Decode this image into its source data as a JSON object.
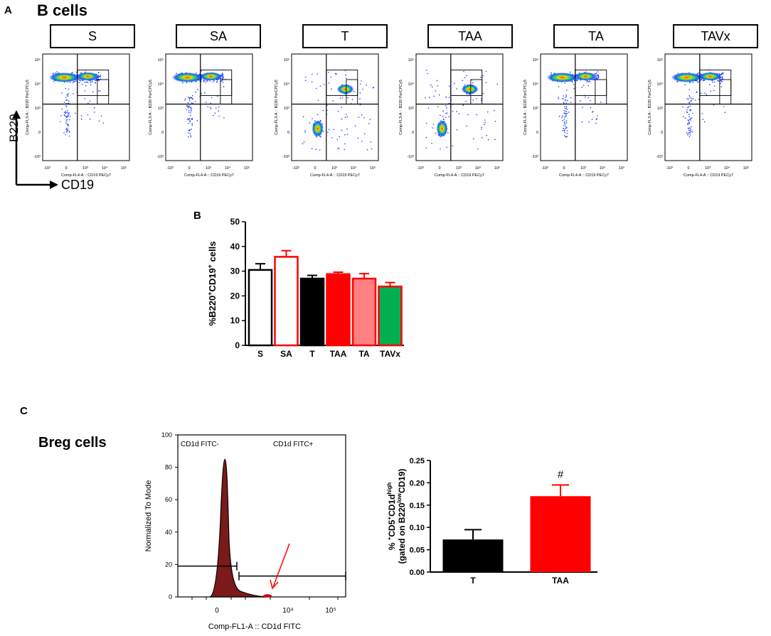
{
  "panel_a": {
    "letter": "A",
    "title": "B cells",
    "groups": [
      "S",
      "SA",
      "T",
      "TAA",
      "TA",
      "TAVx"
    ],
    "y_axis_label": "Comp-FL3-A :: B220 PerCPCy5",
    "x_axis_label": "Comp-FL4-A :: CD19 PECy7",
    "y_marker": "B220",
    "x_marker": "CD19",
    "tick_labels": [
      "-10³",
      "0",
      "10³",
      "10⁴",
      "10⁵"
    ]
  },
  "chart_data": [
    {
      "type": "bar",
      "panel": "B",
      "categories": [
        "S",
        "SA",
        "T",
        "TAA",
        "TA",
        "TAVx"
      ],
      "values": [
        30.5,
        35.8,
        27.0,
        28.8,
        27.0,
        23.8
      ],
      "errors": [
        2.5,
        2.5,
        1.3,
        0.8,
        2.0,
        1.6
      ],
      "colors": [
        "#ffffff",
        "#ffffff",
        "#000000",
        "#ff0000",
        "#ff8080",
        "#00b050"
      ],
      "edge_colors": [
        "#000000",
        "#ff0000",
        "#000000",
        "#ff0000",
        "#ff0000",
        "#ff0000"
      ],
      "ylabel_parts": [
        "%B220",
        "+",
        "CD19",
        "+",
        "cells"
      ],
      "ylim": [
        0,
        50
      ],
      "yticks": [
        "0",
        "10",
        "20",
        "30",
        "40",
        "50"
      ]
    },
    {
      "type": "histogram",
      "panel": "C-left",
      "ylabel": "Normalized To Mode",
      "xlabel": "Comp-FL1-A :: CD1d FITC",
      "ylim": [
        0,
        100
      ],
      "yticks": [
        "0",
        "20",
        "40",
        "60",
        "80",
        "100"
      ],
      "xticks": [
        "0",
        "10⁴",
        "10⁵"
      ],
      "gate_negative_label": "CD1d FITC-",
      "gate_positive_label": "CD1d FITC+",
      "peak_mode_value": 85,
      "gate_level": 19,
      "fill_color": "#7a1a1a",
      "arrow_color": "#ff0000"
    },
    {
      "type": "bar",
      "panel": "C-right",
      "categories": [
        "T",
        "TAA"
      ],
      "values": [
        0.073,
        0.17
      ],
      "errors": [
        0.022,
        0.025
      ],
      "colors": [
        "#000000",
        "#ff0000"
      ],
      "ylabel_line1": "% CD5 CD1d",
      "ylabel_line1_sup1": "+",
      "ylabel_line1_sup2": "+",
      "ylabel_line1_sup3": "high",
      "ylabel_line2": "(gated on B220 CD19)",
      "ylabel_line2_sup": "low",
      "ylim": [
        0,
        0.25
      ],
      "yticks": [
        "0.00",
        "0.05",
        "0.10",
        "0.15",
        "0.20",
        "0.25"
      ],
      "annotation": "#"
    }
  ],
  "panel_b": {
    "letter": "B"
  },
  "panel_c": {
    "letter": "C",
    "title": "Breg cells"
  }
}
